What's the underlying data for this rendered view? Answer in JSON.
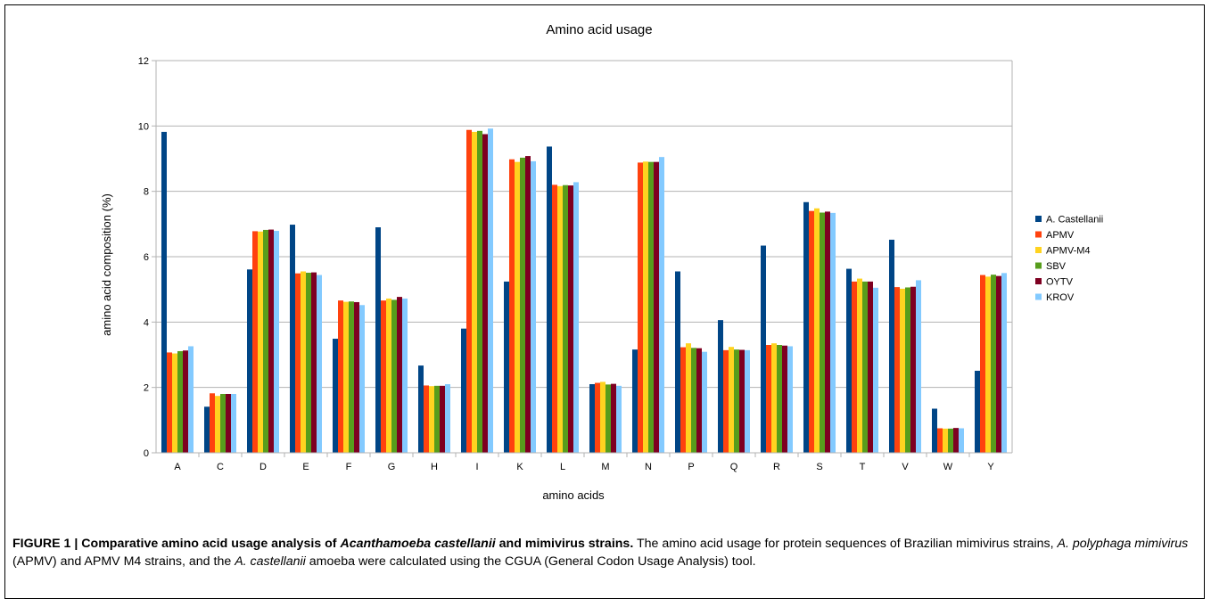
{
  "chart_data": {
    "type": "bar",
    "title": "Amino acid usage",
    "xlabel": "amino acids",
    "ylabel": "amino acid composition (%)",
    "ylim": [
      0,
      12
    ],
    "yticks": [
      0,
      2,
      4,
      6,
      8,
      10,
      12
    ],
    "grid": true,
    "legend_position": "right",
    "categories": [
      "A",
      "C",
      "D",
      "E",
      "F",
      "G",
      "H",
      "I",
      "K",
      "L",
      "M",
      "N",
      "P",
      "Q",
      "R",
      "S",
      "T",
      "V",
      "W",
      "Y"
    ],
    "series": [
      {
        "name": "A. Castellanii",
        "color": "#004586",
        "values": [
          9.82,
          1.41,
          5.61,
          6.98,
          3.49,
          6.9,
          2.67,
          3.8,
          5.24,
          9.37,
          2.1,
          3.16,
          5.55,
          4.06,
          6.34,
          7.67,
          5.63,
          6.52,
          1.35,
          2.51
        ]
      },
      {
        "name": "APMV",
        "color": "#ff420e",
        "values": [
          3.07,
          1.82,
          6.78,
          5.49,
          4.66,
          4.66,
          2.06,
          9.88,
          8.98,
          8.2,
          2.14,
          8.88,
          3.23,
          3.14,
          3.3,
          7.4,
          5.24,
          5.07,
          0.75,
          5.44
        ]
      },
      {
        "name": "APMV-M4",
        "color": "#ffd320",
        "values": [
          3.04,
          1.74,
          6.77,
          5.55,
          4.62,
          4.72,
          2.04,
          9.82,
          8.9,
          8.16,
          2.17,
          8.91,
          3.35,
          3.24,
          3.35,
          7.48,
          5.33,
          5.02,
          0.74,
          5.39
        ]
      },
      {
        "name": "SBV",
        "color": "#579d1c",
        "values": [
          3.11,
          1.8,
          6.82,
          5.51,
          4.63,
          4.68,
          2.05,
          9.85,
          9.03,
          8.19,
          2.09,
          8.9,
          3.21,
          3.16,
          3.3,
          7.35,
          5.24,
          5.06,
          0.74,
          5.45
        ]
      },
      {
        "name": "OYTV",
        "color": "#7e0021",
        "values": [
          3.13,
          1.8,
          6.83,
          5.52,
          4.61,
          4.77,
          2.05,
          9.75,
          9.08,
          8.18,
          2.11,
          8.9,
          3.2,
          3.15,
          3.28,
          7.38,
          5.24,
          5.08,
          0.76,
          5.41
        ]
      },
      {
        "name": "KROV",
        "color": "#83caff",
        "values": [
          3.26,
          1.8,
          6.79,
          5.44,
          4.52,
          4.72,
          2.1,
          9.92,
          8.92,
          8.28,
          2.05,
          9.05,
          3.09,
          3.14,
          3.26,
          7.34,
          5.05,
          5.28,
          0.75,
          5.5
        ]
      }
    ]
  },
  "caption": {
    "bold_lead": "FIGURE 1 | Comparative amino acid usage analysis of ",
    "bold_italic": "Acanthamoeba castellanii",
    "bold_tail": " and mimivirus strains.",
    "text_1": " The amino acid usage for protein sequences of Brazilian mimivirus strains, ",
    "italic_1": "A. polyphaga mimivirus",
    "text_2": " (APMV) and APMV M4 strains, and the ",
    "italic_2": "A. castellanii",
    "text_3": " amoeba were calculated using the CGUA (General Codon Usage Analysis) tool."
  }
}
